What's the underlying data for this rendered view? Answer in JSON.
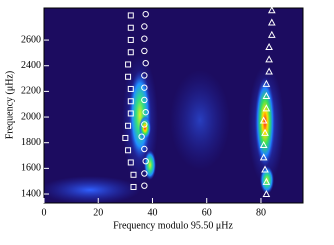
{
  "chart_data": {
    "type": "scatter",
    "xlabel": "Frequency modulo 95.50 μHz",
    "ylabel": "Frequency (μHz)",
    "xlim": [
      0,
      95.5
    ],
    "xticks": [
      0,
      20,
      40,
      60,
      80
    ],
    "ylim": [
      1330,
      2850
    ],
    "yticks": [
      1400,
      1600,
      1800,
      2000,
      2200,
      2400,
      2600
    ],
    "series": [
      {
        "marker": "square",
        "color": "#ffffff",
        "x": [
          33,
          33,
          32,
          31,
          30,
          31,
          32,
          32,
          32,
          31,
          31,
          32,
          32,
          32,
          32
        ],
        "values": [
          1455,
          1550,
          1646,
          1741,
          1837,
          1932,
          2028,
          2123,
          2219,
          2314,
          2410,
          2505,
          2601,
          2696,
          2792
        ]
      },
      {
        "marker": "circle",
        "color": "#ffffff",
        "x": [
          37,
          37,
          37.5,
          37,
          36,
          37,
          37.5,
          37,
          37,
          37,
          37.5,
          37,
          37,
          37,
          37.5
        ],
        "values": [
          1465,
          1560,
          1656,
          1751,
          1847,
          1942,
          2038,
          2133,
          2229,
          2324,
          2420,
          2515,
          2611,
          2706,
          2802
        ]
      },
      {
        "marker": "triangle",
        "color": "#ffffff",
        "x": [
          82,
          82,
          81.5,
          81,
          81,
          81.5,
          81,
          82,
          82,
          82,
          83,
          83,
          83,
          84,
          84,
          84
        ],
        "values": [
          1400,
          1495,
          1591,
          1686,
          1782,
          1877,
          1973,
          2068,
          2164,
          2259,
          2355,
          2450,
          2546,
          2641,
          2737,
          2832
        ]
      }
    ]
  }
}
